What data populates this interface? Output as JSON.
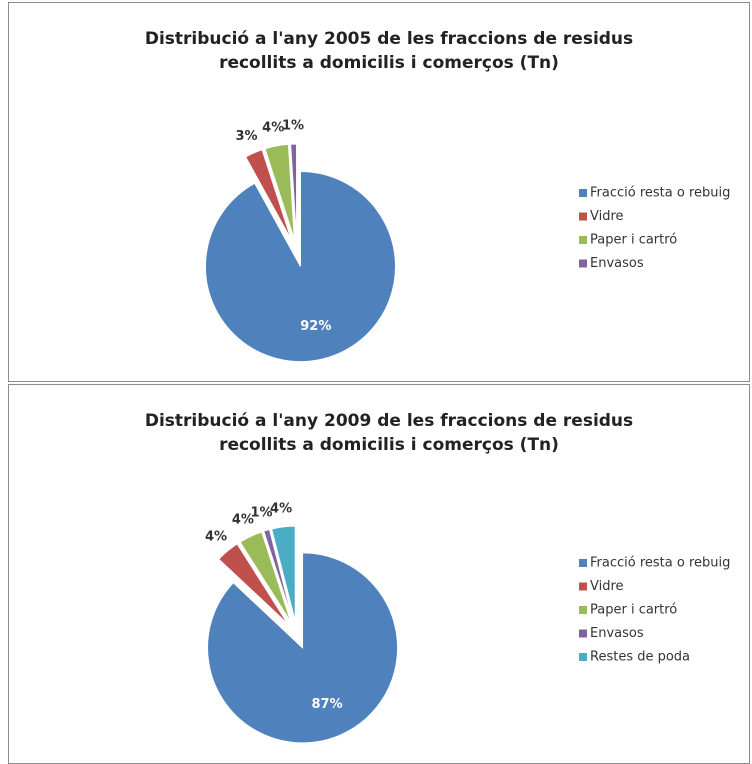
{
  "chart_data": [
    {
      "type": "pie",
      "title": "Distribució a l'any 2005 de les fraccions de residus recollits a domicilis i comerços  (Tn)",
      "categories": [
        "Fracció resta o rebuig",
        "Vidre",
        "Paper i cartró",
        "Envasos"
      ],
      "values": [
        92,
        3,
        4,
        1
      ],
      "value_labels": [
        "92%",
        "3%",
        "4%",
        "1%"
      ],
      "colors": [
        "#4f81bd",
        "#c0504d",
        "#9bbb59",
        "#8064a2"
      ],
      "legend": "right"
    },
    {
      "type": "pie",
      "title": "Distribució a l'any 2009 de les fraccions de residus recollits a domicilis i comerços  (Tn)",
      "categories": [
        "Fracció resta o rebuig",
        "Vidre",
        "Paper i cartró",
        "Envasos",
        "Restes de poda"
      ],
      "values": [
        87,
        4,
        4,
        1,
        4
      ],
      "value_labels": [
        "87%",
        "4%",
        "4%",
        "1%",
        "4%"
      ],
      "colors": [
        "#4f81bd",
        "#c0504d",
        "#9bbb59",
        "#8064a2",
        "#4bacc6"
      ],
      "legend": "right"
    }
  ]
}
